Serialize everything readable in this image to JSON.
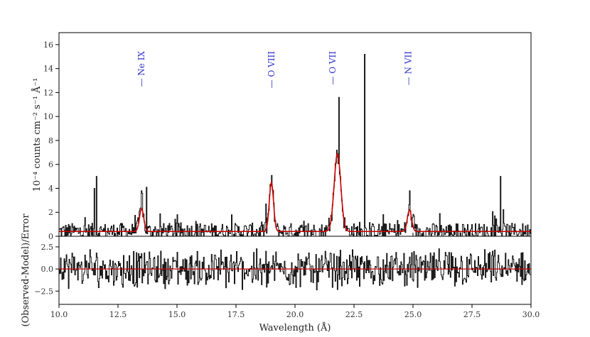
{
  "chart_data": [
    {
      "type": "line",
      "title": "",
      "xlabel": "",
      "ylabel": "10⁻⁴ counts cm⁻² s⁻¹ Å⁻¹",
      "xlim": [
        10.0,
        30.0
      ],
      "ylim": [
        0,
        17
      ],
      "yticks": [
        "0",
        "2",
        "4",
        "6",
        "8",
        "10",
        "12",
        "14",
        "16"
      ],
      "line_labels": [
        {
          "x": 13.5,
          "text": "— Ne IX"
        },
        {
          "x": 19.0,
          "text": "— O VIII"
        },
        {
          "x": 21.6,
          "text": "— O VII"
        },
        {
          "x": 24.8,
          "text": "— N VII"
        }
      ],
      "series": [
        {
          "role": "observed",
          "color": "#000000",
          "baseline": 0.5,
          "features": [
            {
              "x": 11.5,
              "y": 4.0
            },
            {
              "x": 11.6,
              "y": 5.0
            },
            {
              "x": 13.5,
              "y": 3.8
            },
            {
              "x": 13.7,
              "y": 4.1
            },
            {
              "x": 19.0,
              "y": 4.6
            },
            {
              "x": 21.8,
              "y": 6.6
            },
            {
              "x": 21.85,
              "y": 11.6
            },
            {
              "x": 22.95,
              "y": 15.2
            },
            {
              "x": 24.85,
              "y": 3.8
            },
            {
              "x": 28.7,
              "y": 5.0
            }
          ]
        },
        {
          "role": "model",
          "color": "#cc0000",
          "baseline": 0.4,
          "peaks": [
            {
              "x": 13.5,
              "height": 1.9
            },
            {
              "x": 19.0,
              "height": 4.1
            },
            {
              "x": 21.8,
              "height": 6.5
            },
            {
              "x": 24.85,
              "height": 1.8
            }
          ]
        }
      ]
    },
    {
      "type": "line",
      "title": "",
      "xlabel": "Wavelength (Å)",
      "ylabel": "(Observed-Model)/Error",
      "xlim": [
        10.0,
        30.0
      ],
      "ylim": [
        -4.0,
        3.7
      ],
      "xticks": [
        "10.0",
        "12.5",
        "15.0",
        "17.5",
        "20.0",
        "22.5",
        "25.0",
        "27.5",
        "30.0"
      ],
      "yticks": [
        "−2.5",
        "0.0",
        "2.5"
      ],
      "series": [
        {
          "role": "residual",
          "color": "#000000",
          "value_range": [
            -3.5,
            3.5
          ]
        },
        {
          "role": "zero-line",
          "color": "#cc0000",
          "y": 0.0
        }
      ]
    }
  ]
}
